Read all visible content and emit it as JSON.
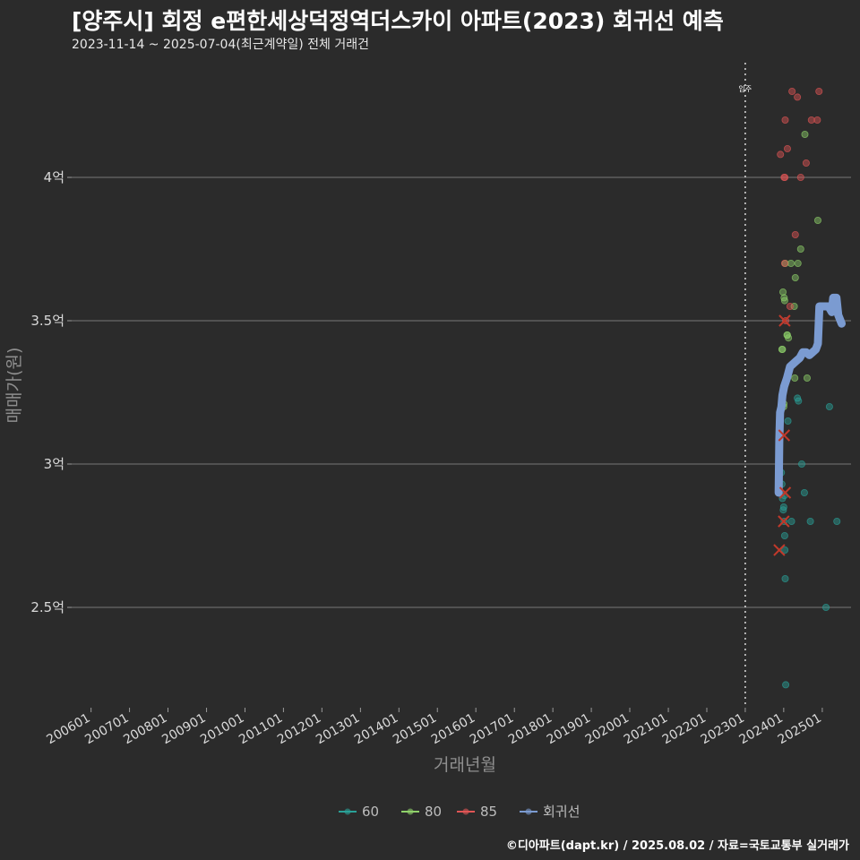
{
  "header": {
    "title": "[양주시] 회정 e편한세상덕정역더스카이 아파트(2023) 회귀선 예측",
    "subtitle": "2023-11-14 ~ 2025-07-04(최근계약일) 전체 거래건"
  },
  "footer": {
    "credit": "©디아파트(dapt.kr) / 2025.08.02 / 자료=국토교통부 실거래가"
  },
  "colors": {
    "background": "#2b2b2b",
    "gridline": "#777777",
    "series_60": "#2aa198",
    "series_80": "#8fd16a",
    "series_85": "#e05555",
    "regression": "#7b9bd1",
    "cancelled_mark": "#c0392b"
  },
  "chart_data": {
    "type": "scatter",
    "xlabel": "거래년월",
    "ylabel": "매매가(원)",
    "x_ticks": [
      "200601",
      "200701",
      "200801",
      "200901",
      "201001",
      "201101",
      "201201",
      "201301",
      "201401",
      "201501",
      "201601",
      "201701",
      "201801",
      "201901",
      "202001",
      "202101",
      "202201",
      "202301",
      "202401",
      "202501"
    ],
    "y_ticks": [
      {
        "value": 2.5,
        "label": "2.5억"
      },
      {
        "value": 3.0,
        "label": "3억"
      },
      {
        "value": 3.5,
        "label": "3.5억"
      },
      {
        "value": 4.0,
        "label": "4억"
      }
    ],
    "xlim": [
      "2005-07-01",
      "2025-10-01"
    ],
    "ylim": [
      2.15,
      4.4
    ],
    "grid": true,
    "legend_position": "bottom",
    "vline": {
      "x": "2023-01-01",
      "label": "입주"
    },
    "series": [
      {
        "name": "60",
        "color": "#2aa198",
        "points": [
          [
            "2023-12-10",
            2.97
          ],
          [
            "2023-12-15",
            2.93
          ],
          [
            "2023-12-20",
            2.88
          ],
          [
            "2024-01-01",
            2.85
          ],
          [
            "2024-01-05",
            2.8
          ],
          [
            "2024-01-10",
            2.75
          ],
          [
            "2024-01-12",
            2.7
          ],
          [
            "2024-01-15",
            2.6
          ],
          [
            "2024-01-20",
            2.23
          ],
          [
            "2024-02-10",
            3.15
          ],
          [
            "2024-03-15",
            2.8
          ],
          [
            "2024-05-10",
            3.23
          ],
          [
            "2024-05-20",
            3.22
          ],
          [
            "2024-06-20",
            3.0
          ],
          [
            "2024-07-15",
            2.9
          ],
          [
            "2024-09-10",
            2.8
          ],
          [
            "2025-02-05",
            2.5
          ],
          [
            "2025-03-10",
            3.2
          ],
          [
            "2025-05-20",
            2.8
          ],
          [
            "2024-01-08",
            2.89
          ],
          [
            "2023-12-28",
            2.84
          ]
        ]
      },
      {
        "name": "80",
        "color": "#8fd16a",
        "points": [
          [
            "2023-12-25",
            3.6
          ],
          [
            "2024-01-05",
            3.58
          ],
          [
            "2024-01-10",
            3.57
          ],
          [
            "2024-01-15",
            3.7
          ],
          [
            "2024-02-05",
            3.45
          ],
          [
            "2024-02-15",
            3.44
          ],
          [
            "2023-12-15",
            3.4
          ],
          [
            "2023-12-20",
            3.4
          ],
          [
            "2023-11-25",
            3.1
          ],
          [
            "2024-01-01",
            3.2
          ],
          [
            "2024-01-03",
            3.21
          ],
          [
            "2024-03-10",
            3.7
          ],
          [
            "2024-04-10",
            3.55
          ],
          [
            "2024-04-20",
            3.65
          ],
          [
            "2024-05-15",
            3.7
          ],
          [
            "2024-06-10",
            3.75
          ],
          [
            "2024-07-20",
            4.15
          ],
          [
            "2024-08-10",
            3.3
          ],
          [
            "2024-11-20",
            3.85
          ],
          [
            "2024-04-15",
            3.3
          ],
          [
            "2024-02-01",
            3.45
          ]
        ]
      },
      {
        "name": "85",
        "color": "#e05555",
        "points": [
          [
            "2023-12-01",
            4.08
          ],
          [
            "2024-01-05",
            4.0
          ],
          [
            "2024-01-12",
            4.0
          ],
          [
            "2024-01-15",
            4.2
          ],
          [
            "2024-02-05",
            4.1
          ],
          [
            "2024-03-20",
            4.3
          ],
          [
            "2024-05-10",
            4.28
          ],
          [
            "2024-04-20",
            3.8
          ],
          [
            "2024-01-10",
            3.7
          ],
          [
            "2024-01-20",
            3.5
          ],
          [
            "2024-03-01",
            3.55
          ],
          [
            "2024-06-10",
            4.0
          ],
          [
            "2024-08-01",
            4.05
          ],
          [
            "2024-09-20",
            4.2
          ],
          [
            "2024-11-15",
            4.2
          ],
          [
            "2024-12-01",
            4.3
          ]
        ]
      },
      {
        "name": "회귀선",
        "color": "#7b9bd1",
        "line": [
          [
            "2023-11-14",
            2.9
          ],
          [
            "2023-11-20",
            3.08
          ],
          [
            "2023-11-28",
            3.18
          ],
          [
            "2023-12-10",
            3.2
          ],
          [
            "2023-12-20",
            3.24
          ],
          [
            "2024-01-05",
            3.27
          ],
          [
            "2024-02-01",
            3.3
          ],
          [
            "2024-03-01",
            3.34
          ],
          [
            "2024-04-01",
            3.35
          ],
          [
            "2024-05-01",
            3.36
          ],
          [
            "2024-06-01",
            3.37
          ],
          [
            "2024-07-01",
            3.39
          ],
          [
            "2024-08-01",
            3.39
          ],
          [
            "2024-09-01",
            3.38
          ],
          [
            "2024-10-01",
            3.39
          ],
          [
            "2024-11-01",
            3.4
          ],
          [
            "2024-11-20",
            3.42
          ],
          [
            "2024-12-05",
            3.55
          ],
          [
            "2025-01-01",
            3.55
          ],
          [
            "2025-02-01",
            3.55
          ],
          [
            "2025-03-01",
            3.55
          ],
          [
            "2025-04-01",
            3.53
          ],
          [
            "2025-04-15",
            3.58
          ],
          [
            "2025-05-15",
            3.58
          ],
          [
            "2025-06-01",
            3.52
          ],
          [
            "2025-07-04",
            3.49
          ]
        ]
      }
    ],
    "cancelled_points": [
      [
        "2024-01-10",
        3.5
      ],
      [
        "2024-01-05",
        3.1
      ],
      [
        "2024-01-15",
        2.9
      ],
      [
        "2024-01-01",
        2.8
      ],
      [
        "2023-11-20",
        2.7
      ]
    ]
  }
}
